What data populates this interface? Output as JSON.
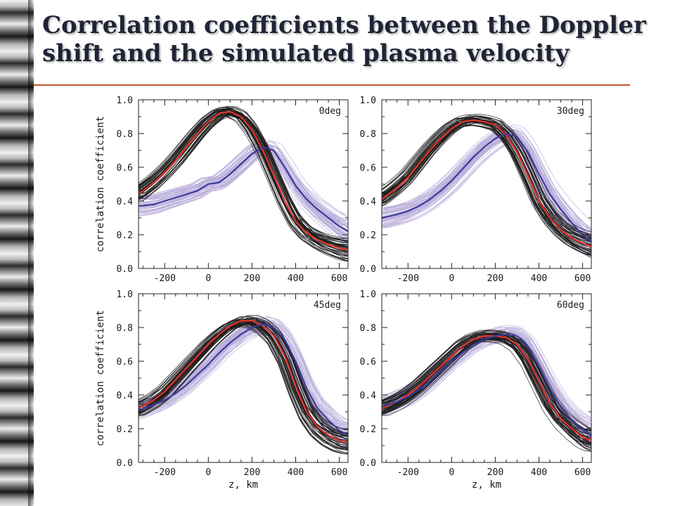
{
  "slide": {
    "title_line1": "Correlation coefficients between the Doppler",
    "title_line2": "shift and the simulated plasma velocity"
  },
  "colors": {
    "title": "#1f2436",
    "rule": "#c0592a",
    "black_ensemble": "#1a1a1a",
    "purple_ensemble": "#bbaedb",
    "red_mean": "#e8332c",
    "blue_mean": "#3a3a9c"
  },
  "chart_data": [
    {
      "type": "line",
      "panel_label": "0deg",
      "xlabel": "",
      "ylabel": "correlation coefficient",
      "xlim": [
        -320,
        640
      ],
      "ylim": [
        0,
        1
      ],
      "xticks": [
        -200,
        0,
        200,
        400,
        600
      ],
      "yticks": [
        0.0,
        0.2,
        0.4,
        0.6,
        0.8,
        1.0
      ],
      "ytick_labels": [
        "0.0",
        "0.2",
        "0.4",
        "0.6",
        "0.8",
        "1.0"
      ],
      "x": [
        -320,
        -250,
        -200,
        -150,
        -100,
        -50,
        0,
        50,
        100,
        150,
        200,
        250,
        300,
        350,
        400,
        450,
        500,
        550,
        600,
        640
      ],
      "series": [
        {
          "role": "black_ensemble_mean",
          "values": [
            0.44,
            0.51,
            0.57,
            0.64,
            0.72,
            0.8,
            0.87,
            0.92,
            0.93,
            0.9,
            0.82,
            0.7,
            0.55,
            0.4,
            0.28,
            0.21,
            0.17,
            0.14,
            0.12,
            0.11
          ]
        },
        {
          "role": "purple_ensemble_mean",
          "values": [
            0.37,
            0.38,
            0.4,
            0.42,
            0.44,
            0.46,
            0.5,
            0.51,
            0.56,
            0.62,
            0.68,
            0.72,
            0.7,
            0.6,
            0.49,
            0.41,
            0.35,
            0.3,
            0.25,
            0.22
          ]
        }
      ]
    },
    {
      "type": "line",
      "panel_label": "30deg",
      "xlabel": "",
      "ylabel": "",
      "xlim": [
        -320,
        640
      ],
      "ylim": [
        0,
        1
      ],
      "xticks": [
        -200,
        0,
        200,
        400,
        600
      ],
      "yticks": [
        0.0,
        0.2,
        0.4,
        0.6,
        0.8,
        1.0
      ],
      "ytick_labels": [
        "0.0",
        "0.2",
        "0.4",
        "0.6",
        "0.8",
        "1.0"
      ],
      "x": [
        -320,
        -250,
        -200,
        -150,
        -100,
        -50,
        0,
        50,
        100,
        150,
        200,
        250,
        300,
        350,
        400,
        450,
        500,
        550,
        600,
        640
      ],
      "series": [
        {
          "role": "black_ensemble_mean",
          "values": [
            0.41,
            0.48,
            0.54,
            0.62,
            0.7,
            0.77,
            0.83,
            0.87,
            0.88,
            0.87,
            0.85,
            0.79,
            0.69,
            0.55,
            0.4,
            0.3,
            0.23,
            0.18,
            0.15,
            0.13
          ]
        },
        {
          "role": "purple_ensemble_mean",
          "values": [
            0.3,
            0.32,
            0.34,
            0.37,
            0.41,
            0.46,
            0.52,
            0.59,
            0.66,
            0.72,
            0.77,
            0.8,
            0.78,
            0.69,
            0.56,
            0.44,
            0.35,
            0.27,
            0.2,
            0.16
          ]
        }
      ]
    },
    {
      "type": "line",
      "panel_label": "45deg",
      "xlabel": "z, km",
      "ylabel": "correlation coefficient",
      "xlim": [
        -320,
        640
      ],
      "ylim": [
        0,
        1
      ],
      "xticks": [
        -200,
        0,
        200,
        400,
        600
      ],
      "yticks": [
        0.0,
        0.2,
        0.4,
        0.6,
        0.8,
        1.0
      ],
      "ytick_labels": [
        "0.0",
        "0.2",
        "0.4",
        "0.6",
        "0.8",
        "1.0"
      ],
      "x": [
        -320,
        -250,
        -200,
        -150,
        -100,
        -50,
        0,
        50,
        100,
        150,
        200,
        250,
        300,
        350,
        400,
        450,
        500,
        550,
        600,
        640
      ],
      "series": [
        {
          "role": "black_ensemble_mean",
          "values": [
            0.32,
            0.37,
            0.42,
            0.49,
            0.56,
            0.63,
            0.7,
            0.76,
            0.81,
            0.84,
            0.84,
            0.81,
            0.75,
            0.63,
            0.45,
            0.3,
            0.21,
            0.16,
            0.13,
            0.12
          ]
        },
        {
          "role": "purple_ensemble_mean",
          "values": [
            0.31,
            0.34,
            0.37,
            0.41,
            0.46,
            0.52,
            0.58,
            0.65,
            0.71,
            0.76,
            0.8,
            0.82,
            0.8,
            0.73,
            0.6,
            0.44,
            0.32,
            0.25,
            0.19,
            0.16
          ]
        }
      ]
    },
    {
      "type": "line",
      "panel_label": "60deg",
      "xlabel": "z, km",
      "ylabel": "",
      "xlim": [
        -320,
        640
      ],
      "ylim": [
        0,
        1
      ],
      "xticks": [
        -200,
        0,
        200,
        400,
        600
      ],
      "yticks": [
        0.0,
        0.2,
        0.4,
        0.6,
        0.8,
        1.0
      ],
      "ytick_labels": [
        "0.0",
        "0.2",
        "0.4",
        "0.6",
        "0.8",
        "1.0"
      ],
      "x": [
        -320,
        -250,
        -200,
        -150,
        -100,
        -50,
        0,
        50,
        100,
        150,
        200,
        250,
        300,
        350,
        400,
        450,
        500,
        550,
        600,
        640
      ],
      "series": [
        {
          "role": "black_ensemble_mean",
          "values": [
            0.32,
            0.36,
            0.4,
            0.45,
            0.51,
            0.57,
            0.63,
            0.69,
            0.73,
            0.75,
            0.75,
            0.74,
            0.7,
            0.61,
            0.48,
            0.35,
            0.26,
            0.2,
            0.15,
            0.13
          ]
        },
        {
          "role": "purple_ensemble_mean",
          "values": [
            0.33,
            0.36,
            0.39,
            0.43,
            0.48,
            0.54,
            0.6,
            0.65,
            0.7,
            0.73,
            0.75,
            0.76,
            0.75,
            0.69,
            0.57,
            0.44,
            0.33,
            0.25,
            0.19,
            0.16
          ]
        }
      ]
    }
  ]
}
